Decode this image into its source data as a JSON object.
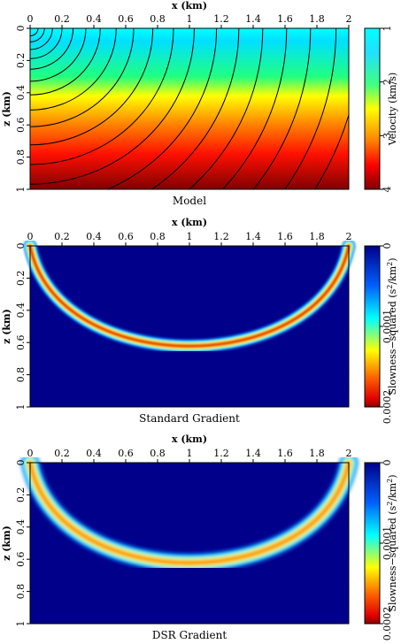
{
  "colormap": [
    "#8b0000",
    "#e00000",
    "#ff7f00",
    "#ffff00",
    "#00ffff",
    "#0080ff",
    "#00008b"
  ],
  "chart_data": [
    {
      "type": "heatmap",
      "title": "Model",
      "xlabel": "x (km)",
      "ylabel": "z (km)",
      "xlim": [
        0,
        2
      ],
      "ylim": [
        0,
        1
      ],
      "x_ticks": [
        "0",
        "0.2",
        "0.4",
        "0.6",
        "0.8",
        "1",
        "1.2",
        "1.4",
        "1.6",
        "1.8",
        "2"
      ],
      "y_ticks": [
        "0",
        "0.2",
        "0.4",
        "0.6",
        "0.8",
        "1"
      ],
      "colorbar": {
        "label": "Velocity (km/s)",
        "ticks": [
          "1",
          "2",
          "3",
          "4"
        ],
        "range": [
          1,
          4
        ]
      },
      "field": "velocity increases with depth, roughly 1 km/s at z=0 to 4 km/s at z=1",
      "contours": "circular wavefronts centred on source at x=0, z=0"
    },
    {
      "type": "heatmap",
      "title": "Standard Gradient",
      "xlabel": "x (km)",
      "ylabel": "z (km)",
      "xlim": [
        0,
        2
      ],
      "ylim": [
        0,
        1
      ],
      "x_ticks": [
        "0",
        "0.2",
        "0.4",
        "0.6",
        "0.8",
        "1",
        "1.2",
        "1.4",
        "1.6",
        "1.8",
        "2"
      ],
      "y_ticks": [
        "0",
        "0.2",
        "0.4",
        "0.6",
        "0.8",
        "1"
      ],
      "colorbar": {
        "label_pre": "Slowness−squared (s",
        "label_mid": "/km",
        "label_end": ")",
        "sup": "2",
        "ticks": [
          "0",
          "0.0001",
          "0.0002"
        ],
        "range": [
          0,
          0.0002
        ]
      },
      "band": {
        "x_end": 2,
        "depth_at_center": 0.72,
        "width_km": 0.06,
        "peak": 0.00018,
        "peak_x": 0.85
      }
    },
    {
      "type": "heatmap",
      "title": "DSR Gradient",
      "xlabel": "x (km)",
      "ylabel": "z (km)",
      "xlim": [
        0,
        2
      ],
      "ylim": [
        0,
        1
      ],
      "x_ticks": [
        "0",
        "0.2",
        "0.4",
        "0.6",
        "0.8",
        "1",
        "1.2",
        "1.4",
        "1.6",
        "1.8",
        "2"
      ],
      "y_ticks": [
        "0",
        "0.2",
        "0.4",
        "0.6",
        "0.8",
        "1"
      ],
      "colorbar": {
        "label_pre": "Slowness−squared (s",
        "label_mid": "/km",
        "label_end": ")",
        "sup": "2",
        "ticks": [
          "0",
          "0.0001",
          "0.0002"
        ],
        "range": [
          0,
          0.0002
        ]
      },
      "band": {
        "x_end": 2,
        "depth_at_center": 0.72,
        "width_km": 0.09,
        "peak": 9e-05,
        "peak_x": 1.0
      }
    }
  ]
}
